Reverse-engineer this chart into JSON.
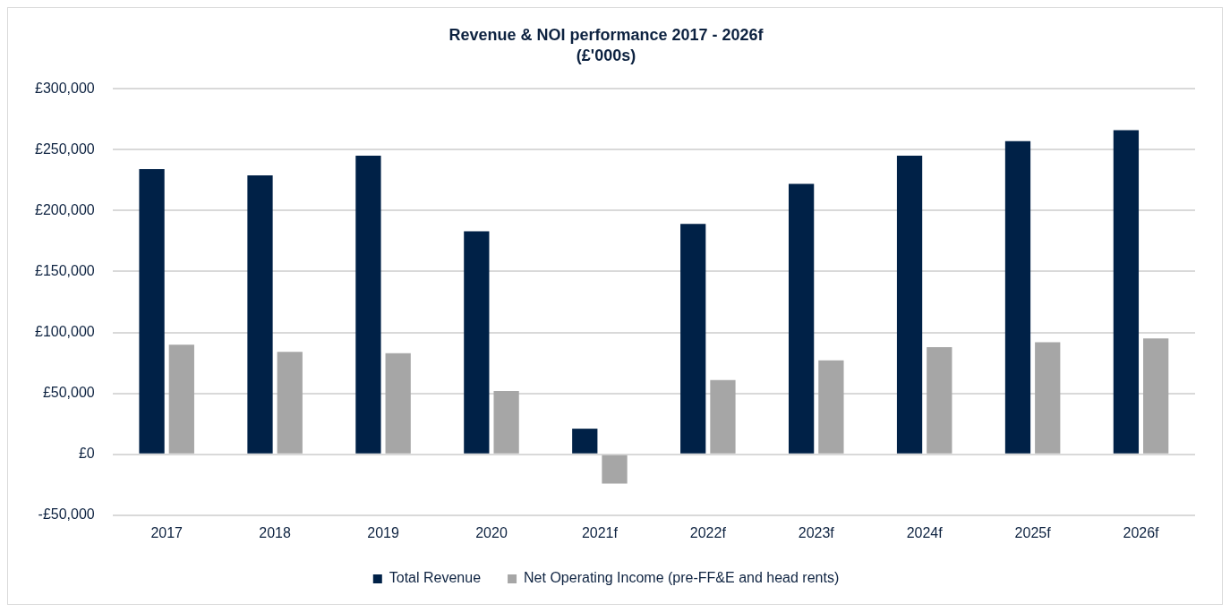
{
  "chart_data": {
    "type": "bar",
    "title": "Revenue & NOI performance 2017 - 2026f",
    "subtitle": "(£'000s)",
    "categories": [
      "2017",
      "2018",
      "2019",
      "2020",
      "2021f",
      "2022f",
      "2023f",
      "2024f",
      "2025f",
      "2026f"
    ],
    "series": [
      {
        "name": "Total Revenue",
        "color": "#002147",
        "values": [
          234000,
          229000,
          245000,
          183000,
          21000,
          189000,
          222000,
          245000,
          257000,
          266000
        ]
      },
      {
        "name": "Net Operating Income (pre-FF&E and head rents)",
        "color": "#a6a6a6",
        "values": [
          90000,
          84000,
          83000,
          52000,
          -24000,
          61000,
          77000,
          88000,
          92000,
          95000
        ]
      }
    ],
    "ylim": [
      -50000,
      300000
    ],
    "yticks": [
      {
        "value": -50000,
        "label": "-£50,000"
      },
      {
        "value": 0,
        "label": "£0"
      },
      {
        "value": 50000,
        "label": "£50,000"
      },
      {
        "value": 100000,
        "label": "£100,000"
      },
      {
        "value": 150000,
        "label": "£150,000"
      },
      {
        "value": 200000,
        "label": "£200,000"
      },
      {
        "value": 250000,
        "label": "£250,000"
      },
      {
        "value": 300000,
        "label": "£300,000"
      }
    ],
    "grid": "y",
    "legend": "bottom"
  }
}
